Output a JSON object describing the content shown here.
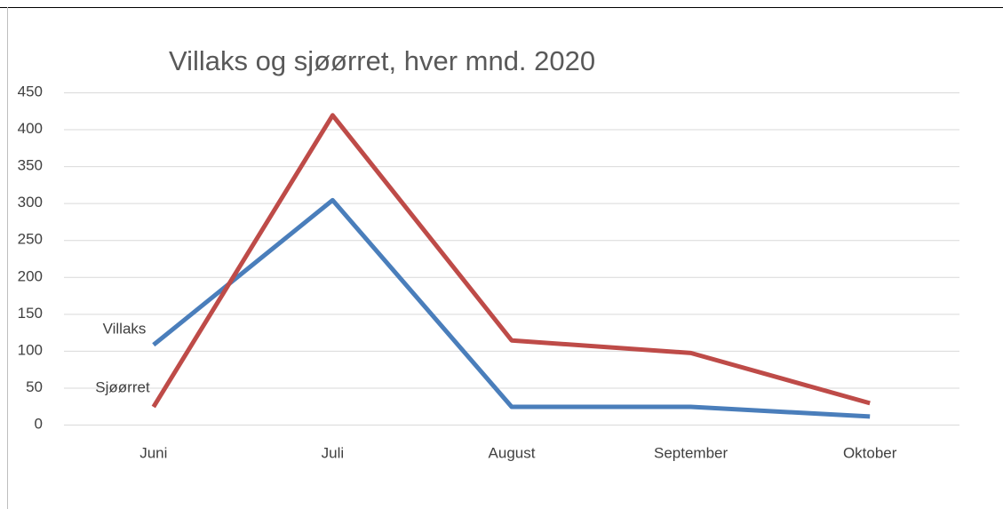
{
  "chart_data": {
    "type": "line",
    "title": "Villaks og sjøørret, hver mnd. 2020",
    "categories": [
      "Juni",
      "Juli",
      "August",
      "September",
      "Oktober"
    ],
    "series": [
      {
        "name": "Villaks",
        "color": "#4a7ebb",
        "values": [
          108,
          304,
          24,
          24,
          11
        ]
      },
      {
        "name": "Sjøørret",
        "color": "#be4b48",
        "values": [
          24,
          419,
          114,
          97,
          29
        ]
      }
    ],
    "ylim": [
      0,
      450
    ],
    "yticks": [
      0,
      50,
      100,
      150,
      200,
      250,
      300,
      350,
      400,
      450
    ],
    "grid": true
  }
}
